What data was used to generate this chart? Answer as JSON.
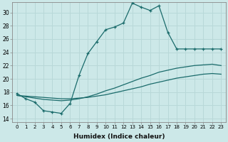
{
  "title": "",
  "xlabel": "Humidex (Indice chaleur)",
  "ylabel": "",
  "bg_color": "#cce8e8",
  "line_color": "#1a6b6b",
  "grid_color": "#b8d8d8",
  "xlim": [
    -0.5,
    23.5
  ],
  "ylim": [
    13.5,
    31.5
  ],
  "xticks": [
    0,
    1,
    2,
    3,
    4,
    5,
    6,
    7,
    8,
    9,
    10,
    11,
    12,
    13,
    14,
    15,
    16,
    17,
    18,
    19,
    20,
    21,
    22,
    23
  ],
  "yticks": [
    14,
    16,
    18,
    20,
    22,
    24,
    26,
    28,
    30
  ],
  "line1_x": [
    0,
    1,
    2,
    3,
    4,
    5,
    6,
    7,
    8,
    9,
    10,
    11,
    12,
    13,
    14,
    15,
    16,
    17,
    18,
    19,
    20,
    21,
    22,
    23
  ],
  "line1_y": [
    17.8,
    17.0,
    16.5,
    15.2,
    15.0,
    14.8,
    16.3,
    20.5,
    23.8,
    25.6,
    27.4,
    27.8,
    28.4,
    31.4,
    30.8,
    30.3,
    31.0,
    27.0,
    24.5,
    24.5,
    24.5,
    24.5,
    24.5,
    24.5
  ],
  "line2_x": [
    0,
    1,
    2,
    3,
    4,
    5,
    6,
    7,
    8,
    9,
    10,
    11,
    12,
    13,
    14,
    15,
    16,
    17,
    18,
    19,
    20,
    21,
    22,
    23
  ],
  "line2_y": [
    17.5,
    17.3,
    17.1,
    16.9,
    16.8,
    16.7,
    16.8,
    17.0,
    17.3,
    17.7,
    18.2,
    18.6,
    19.1,
    19.6,
    20.1,
    20.5,
    21.0,
    21.3,
    21.6,
    21.8,
    22.0,
    22.1,
    22.2,
    22.0
  ],
  "line3_x": [
    0,
    1,
    2,
    3,
    4,
    5,
    6,
    7,
    8,
    9,
    10,
    11,
    12,
    13,
    14,
    15,
    16,
    17,
    18,
    19,
    20,
    21,
    22,
    23
  ],
  "line3_y": [
    17.5,
    17.4,
    17.3,
    17.2,
    17.1,
    17.0,
    17.0,
    17.1,
    17.2,
    17.4,
    17.6,
    17.9,
    18.2,
    18.5,
    18.8,
    19.2,
    19.5,
    19.8,
    20.1,
    20.3,
    20.5,
    20.7,
    20.8,
    20.7
  ]
}
